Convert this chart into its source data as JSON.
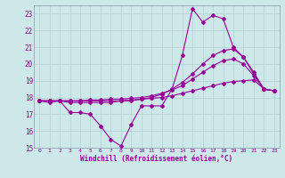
{
  "xlabel": "Windchill (Refroidissement éolien,°C)",
  "xlim": [
    -0.5,
    23.5
  ],
  "ylim": [
    15,
    23.5
  ],
  "yticks": [
    15,
    16,
    17,
    18,
    19,
    20,
    21,
    22,
    23
  ],
  "xticks": [
    0,
    1,
    2,
    3,
    4,
    5,
    6,
    7,
    8,
    9,
    10,
    11,
    12,
    13,
    14,
    15,
    16,
    17,
    18,
    19,
    20,
    21,
    22,
    23
  ],
  "bg_color": "#cce8e8",
  "grid_color": "#b0d0d0",
  "line_color": "#990099",
  "spine_color": "#8899aa",
  "series": [
    {
      "x": [
        0,
        1,
        2,
        3,
        4,
        5,
        6,
        7,
        8,
        9,
        10,
        11,
        12,
        13,
        14,
        15,
        16,
        17,
        18,
        19,
        20,
        21,
        22,
        23
      ],
      "y": [
        17.8,
        17.7,
        17.8,
        17.1,
        17.1,
        17.0,
        16.3,
        15.5,
        15.1,
        16.4,
        17.5,
        17.5,
        17.5,
        18.5,
        20.5,
        23.3,
        22.5,
        22.9,
        22.7,
        21.0,
        20.4,
        19.4,
        18.5,
        18.4
      ]
    },
    {
      "x": [
        0,
        1,
        2,
        3,
        4,
        5,
        6,
        7,
        8,
        9,
        10,
        11,
        12,
        13,
        14,
        15,
        16,
        17,
        18,
        19,
        20,
        21,
        22,
        23
      ],
      "y": [
        17.8,
        17.8,
        17.8,
        17.7,
        17.7,
        17.7,
        17.7,
        17.7,
        17.8,
        17.8,
        17.9,
        18.0,
        18.2,
        18.5,
        18.9,
        19.4,
        20.0,
        20.5,
        20.8,
        20.9,
        20.4,
        19.5,
        18.5,
        18.4
      ]
    },
    {
      "x": [
        0,
        1,
        2,
        3,
        4,
        5,
        6,
        7,
        8,
        9,
        10,
        11,
        12,
        13,
        14,
        15,
        16,
        17,
        18,
        19,
        20,
        21,
        22,
        23
      ],
      "y": [
        17.8,
        17.8,
        17.8,
        17.8,
        17.8,
        17.85,
        17.85,
        17.9,
        17.9,
        17.95,
        18.0,
        18.1,
        18.25,
        18.45,
        18.7,
        19.1,
        19.5,
        19.9,
        20.2,
        20.3,
        20.0,
        19.3,
        18.5,
        18.4
      ]
    },
    {
      "x": [
        0,
        1,
        2,
        3,
        4,
        5,
        6,
        7,
        8,
        9,
        10,
        11,
        12,
        13,
        14,
        15,
        16,
        17,
        18,
        19,
        20,
        21,
        22,
        23
      ],
      "y": [
        17.8,
        17.8,
        17.8,
        17.8,
        17.8,
        17.8,
        17.8,
        17.8,
        17.8,
        17.85,
        17.9,
        17.95,
        18.0,
        18.1,
        18.25,
        18.4,
        18.55,
        18.7,
        18.85,
        18.95,
        19.0,
        19.05,
        18.5,
        18.4
      ]
    }
  ]
}
